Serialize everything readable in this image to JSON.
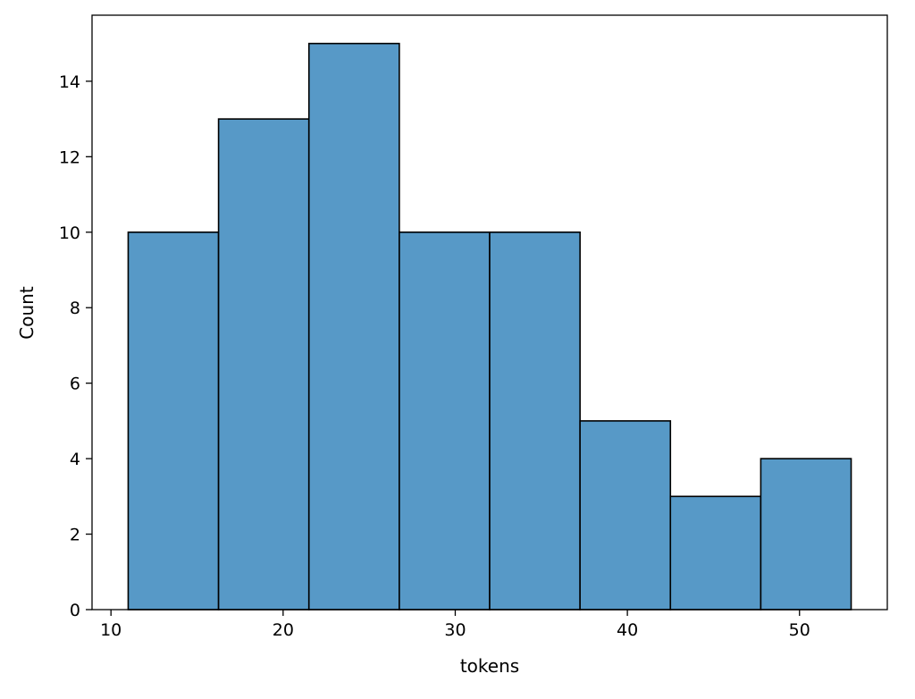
{
  "chart_data": {
    "type": "bar",
    "subtype": "histogram",
    "title": "",
    "xlabel": "tokens",
    "ylabel": "Count",
    "bins": [
      {
        "x0": 11.0,
        "x1": 16.25,
        "count": 10
      },
      {
        "x0": 16.25,
        "x1": 21.5,
        "count": 13
      },
      {
        "x0": 21.5,
        "x1": 26.75,
        "count": 15
      },
      {
        "x0": 26.75,
        "x1": 32.0,
        "count": 10
      },
      {
        "x0": 32.0,
        "x1": 37.25,
        "count": 10
      },
      {
        "x0": 37.25,
        "x1": 42.5,
        "count": 5
      },
      {
        "x0": 42.5,
        "x1": 47.75,
        "count": 3
      },
      {
        "x0": 47.75,
        "x1": 53.0,
        "count": 4
      }
    ],
    "xlim": [
      8.9,
      55.1
    ],
    "ylim": [
      0,
      15.75
    ],
    "xticks": [
      10,
      20,
      30,
      40,
      50
    ],
    "yticks": [
      0,
      2,
      4,
      6,
      8,
      10,
      12,
      14
    ],
    "grid": false,
    "legend": false,
    "bar_color": "#5799c7",
    "edge_color": "#000000"
  }
}
